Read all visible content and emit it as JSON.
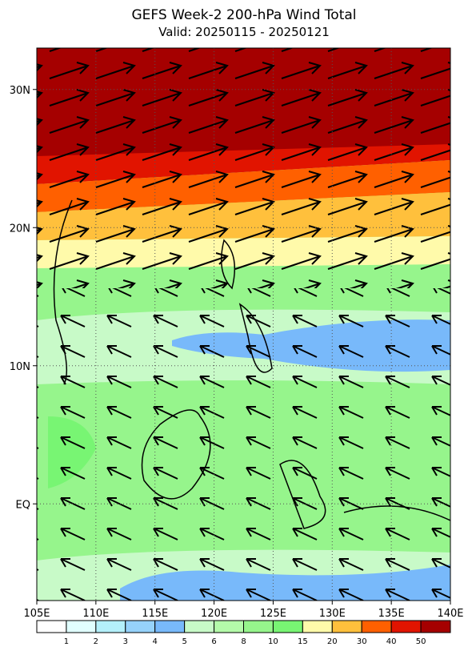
{
  "title": "GEFS Week-2 200-hPa Wind Total",
  "subtitle": "Valid: 20250115 - 20250121",
  "map": {
    "xlim": [
      105,
      140
    ],
    "ylim": [
      -7,
      33
    ],
    "xticks": [
      {
        "value": 105,
        "label": "105E"
      },
      {
        "value": 110,
        "label": "110E"
      },
      {
        "value": 115,
        "label": "115E"
      },
      {
        "value": 120,
        "label": "120E"
      },
      {
        "value": 125,
        "label": "125E"
      },
      {
        "value": 130,
        "label": "130E"
      },
      {
        "value": 135,
        "label": "135E"
      },
      {
        "value": 140,
        "label": "140E"
      }
    ],
    "yticks": [
      {
        "value": 0,
        "label": "EQ"
      },
      {
        "value": 10,
        "label": "10N"
      },
      {
        "value": 20,
        "label": "20N"
      },
      {
        "value": 30,
        "label": "30N"
      }
    ],
    "grid": true
  },
  "colorbar": {
    "levels": [
      1,
      2,
      3,
      4,
      5,
      6,
      8,
      10,
      15,
      20,
      30,
      40,
      50
    ],
    "colors": [
      "#ffffff",
      "#e1ffff",
      "#b4f0fa",
      "#96d2fa",
      "#78b9fa",
      "#c8fac8",
      "#b4faaa",
      "#96f58c",
      "#78f573",
      "#fffaaa",
      "#ffc03c",
      "#ff6000",
      "#e11400",
      "#a50000"
    ]
  }
}
